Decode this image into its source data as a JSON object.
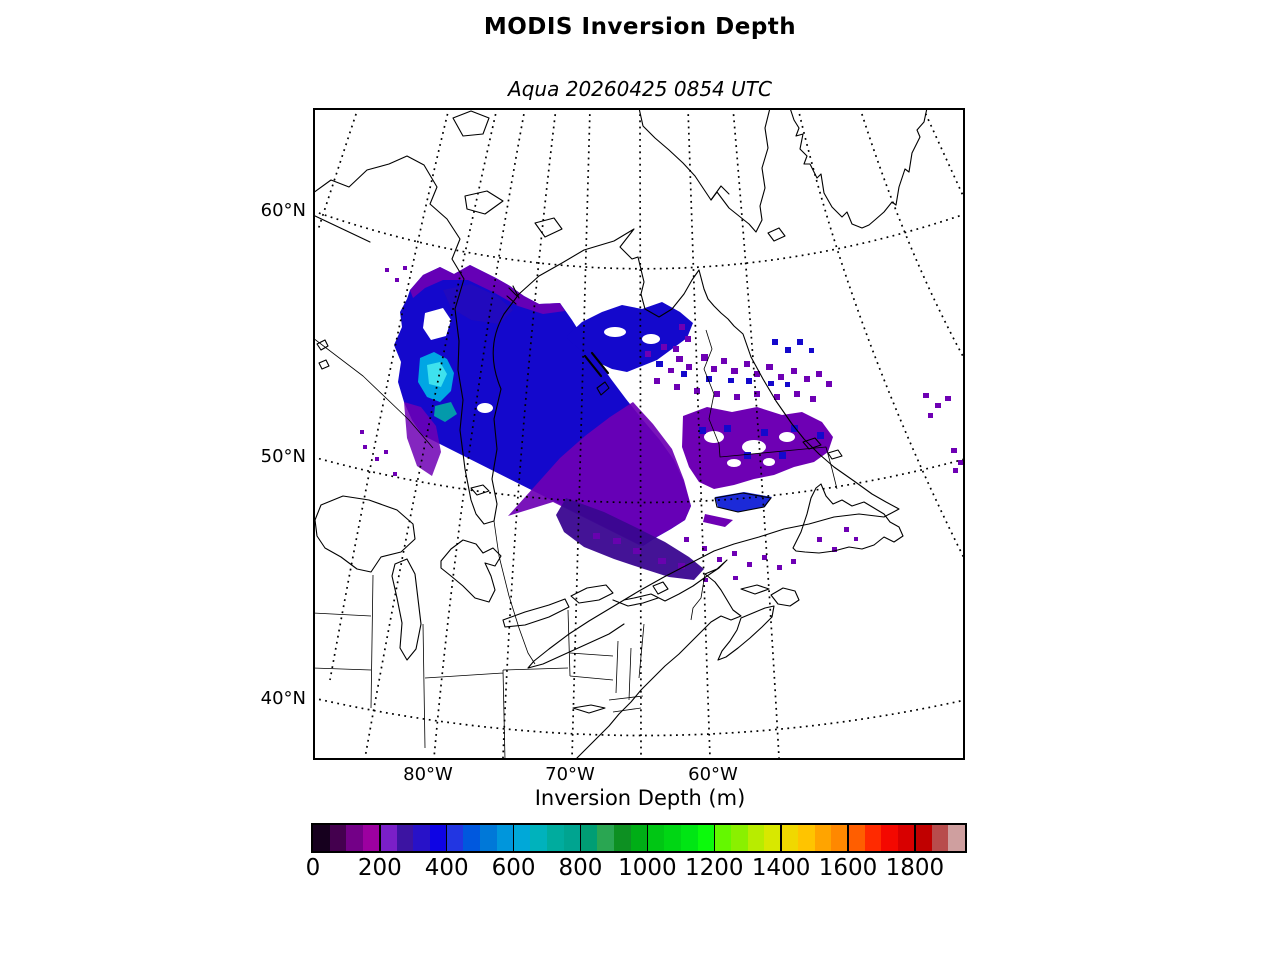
{
  "figure": {
    "title": "MODIS Inversion Depth",
    "subtitle": "Aqua 20260425 0854 UTC"
  },
  "map": {
    "lat_ticks": [
      "60°N",
      "50°N",
      "40°N"
    ],
    "lon_ticks": [
      "80°W",
      "70°W",
      "60°W"
    ],
    "region": "eastern Canada / Hudson Bay / Quebec / Labrador / Newfoundland / Great Lakes / southern Greenland"
  },
  "colorbar": {
    "label": "Inversion Depth (m)",
    "ticks": [
      "0",
      "200",
      "400",
      "600",
      "800",
      "1000",
      "1200",
      "1400",
      "1600",
      "1800"
    ],
    "tick_values": [
      0,
      200,
      400,
      600,
      800,
      1000,
      1200,
      1400,
      1600,
      1800
    ],
    "min": 0,
    "max": 1950,
    "segment_size": 50,
    "colors": [
      "#16001e",
      "#44004e",
      "#730087",
      "#9c00a0",
      "#7a1fc8",
      "#3c14a2",
      "#2812c8",
      "#0e04e4",
      "#2236e2",
      "#0058de",
      "#0078d8",
      "#0096dc",
      "#00a8d8",
      "#00b2bc",
      "#00ac9e",
      "#00a490",
      "#009e74",
      "#2aa652",
      "#0d9022",
      "#00ae16",
      "#00c614",
      "#00d614",
      "#00e614",
      "#0cfa0c",
      "#64f800",
      "#8af000",
      "#b8ec00",
      "#d8e800",
      "#f0d800",
      "#ffc400",
      "#ffa400",
      "#ff8800",
      "#ff5e00",
      "#ff2a00",
      "#f40800",
      "#d80000",
      "#c00000",
      "#b84c4c",
      "#cf9f9f"
    ]
  },
  "data_colors": {
    "blue": "#1408cc",
    "purple": "#6e00b4",
    "navy": "#2a0cb4",
    "cyan": "#00a6e4",
    "bcyan": "#3ee2ee",
    "teal": "#00b4a4",
    "indigo": "#3a0690",
    "streak": "#1c2ad8"
  },
  "chart_data": {
    "type": "heatmap",
    "title": "MODIS Inversion Depth",
    "subtitle": "Aqua 20260425 0854 UTC",
    "colorbar_label": "Inversion Depth (m)",
    "colorbar_range": [
      0,
      1950
    ],
    "colorbar_tick_step": 200,
    "depicted_value_range_m": [
      50,
      700
    ],
    "notes": "Satellite swath of inversion depth (mostly 100-400 m blues/purples, local 500-700 m cyan patch near eastern Hudson Bay) over Quebec; scattered 100-250 m purple patches over Labrador and the Gulf of St. Lawrence"
  }
}
